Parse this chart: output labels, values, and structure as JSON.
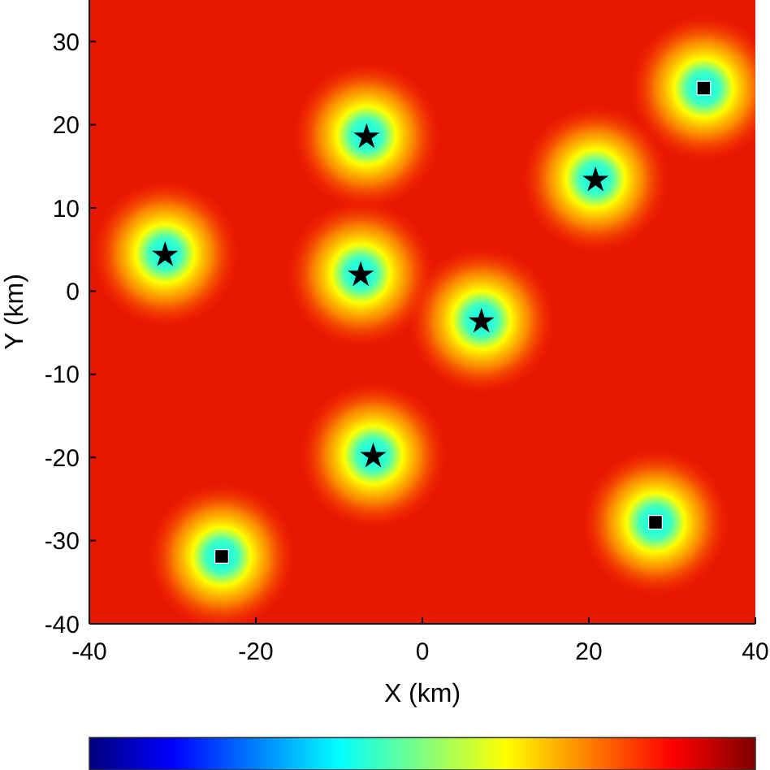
{
  "chart_data": {
    "type": "scatter",
    "xlabel": "X (km)",
    "ylabel": "Y (km)",
    "xlim": [
      -40,
      40
    ],
    "xticks": [
      -40,
      -20,
      0,
      20,
      40
    ],
    "ylim": [
      -40,
      35
    ],
    "yticks": [
      -40,
      -30,
      -20,
      -10,
      0,
      10,
      20,
      30
    ],
    "series": [
      {
        "color": "#000000",
        "marker": "star",
        "x": [
          -6.7,
          20.8,
          -30.9,
          -7.4,
          7.1,
          -5.9
        ],
        "values": [
          18.7,
          13.5,
          4.5,
          2.1,
          -3.5,
          -19.7
        ]
      },
      {
        "color": "#000000",
        "marker": "square",
        "x": [
          33.8,
          -24.1,
          28.0
        ],
        "values": [
          24.4,
          -31.9,
          -27.8
        ]
      }
    ]
  }
}
